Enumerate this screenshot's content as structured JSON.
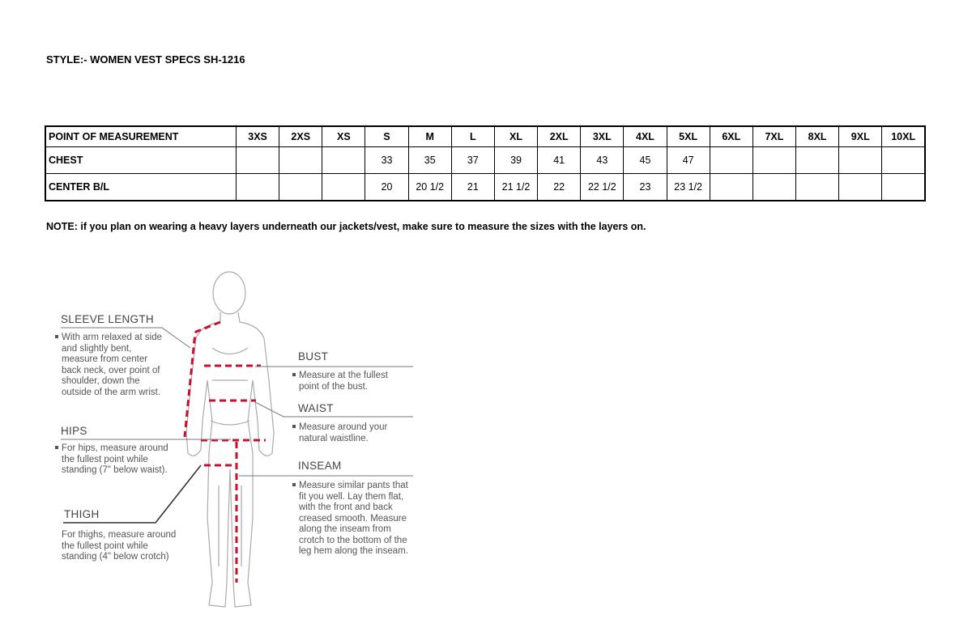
{
  "title": "STYLE:- WOMEN VEST SPECS  SH-1216",
  "table": {
    "header": [
      "POINT OF MEASUREMENT",
      "3XS",
      "2XS",
      "XS",
      "S",
      "M",
      "L",
      "XL",
      "2XL",
      "3XL",
      "4XL",
      "5XL",
      "6XL",
      "7XL",
      "8XL",
      "9XL",
      "10XL"
    ],
    "rows": [
      [
        "CHEST",
        "",
        "",
        "",
        "33",
        "35",
        "37",
        "39",
        "41",
        "43",
        "45",
        "47",
        "",
        "",
        "",
        "",
        ""
      ],
      [
        "CENTER B/L",
        "",
        "",
        "",
        "20",
        "20 1/2",
        "21",
        "21 1/2",
        "22",
        "22 1/2",
        "23",
        "23 1/2",
        "",
        "",
        "",
        "",
        ""
      ]
    ]
  },
  "note": "NOTE: if you plan on wearing a heavy layers underneath our jackets/vest, make sure to measure the sizes with the layers on.",
  "guide": {
    "sleeve": {
      "label": "SLEEVE LENGTH",
      "text": "With arm relaxed at side and slightly bent, measure from center back neck, over point of shoulder, down the outside of the arm wrist."
    },
    "hips": {
      "label": "HIPS",
      "text": "For hips, measure around the fullest point while standing (7\" below waist)."
    },
    "thigh": {
      "label": "THIGH",
      "text": "For thighs, measure around the fullest point while standing (4\" below crotch)"
    },
    "bust": {
      "label": "BUST",
      "text": "Measure at the fullest point of the bust."
    },
    "waist": {
      "label": "WAIST",
      "text": "Measure around your natural waistline."
    },
    "inseam": {
      "label": "INSEAM",
      "text": "Measure similar pants that fit you well. Lay them flat, with the front and back creased smooth. Measure along the inseam from crotch to the bottom of the leg hem along the inseam."
    }
  },
  "colors": {
    "measure_line": "#c8102e",
    "figure": "#999999"
  }
}
